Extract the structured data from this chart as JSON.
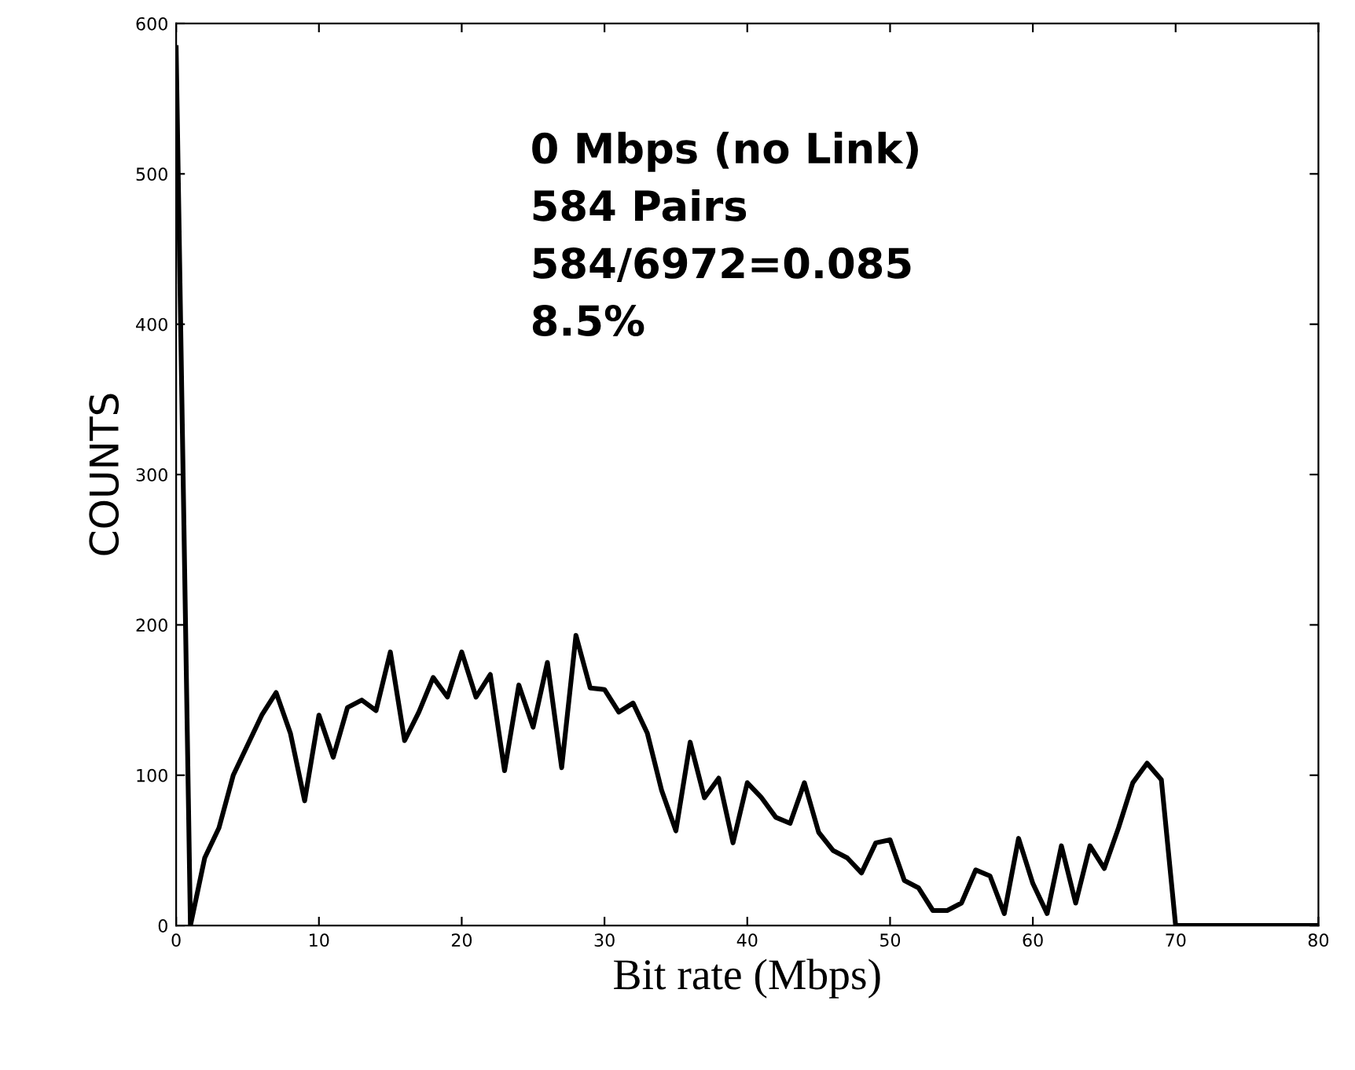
{
  "chart_data": {
    "type": "line",
    "xlabel": "Bit rate (Mbps)",
    "ylabel": "COUNTS",
    "annotations": [
      "0 Mbps (no Link)",
      "584 Pairs",
      "584/6972=0.085",
      "8.5%"
    ],
    "x": [
      0,
      1,
      2,
      3,
      4,
      5,
      6,
      7,
      8,
      9,
      10,
      11,
      12,
      13,
      14,
      15,
      16,
      17,
      18,
      19,
      20,
      21,
      22,
      23,
      24,
      25,
      26,
      27,
      28,
      29,
      30,
      31,
      32,
      33,
      34,
      35,
      36,
      37,
      38,
      39,
      40,
      41,
      42,
      43,
      44,
      45,
      46,
      47,
      48,
      49,
      50,
      51,
      52,
      53,
      54,
      55,
      56,
      57,
      58,
      59,
      60,
      61,
      62,
      63,
      64,
      65,
      66,
      67,
      68,
      69,
      70,
      71,
      72,
      73,
      74,
      75,
      76,
      77,
      78,
      79,
      80
    ],
    "series": [
      {
        "color": "#000000",
        "values": [
          584,
          0,
          45,
          65,
          100,
          120,
          140,
          155,
          128,
          83,
          140,
          112,
          145,
          150,
          143,
          182,
          123,
          142,
          165,
          152,
          182,
          152,
          167,
          103,
          160,
          132,
          175,
          105,
          193,
          158,
          157,
          142,
          148,
          128,
          90,
          63,
          122,
          85,
          98,
          55,
          95,
          85,
          72,
          68,
          95,
          62,
          50,
          45,
          35,
          55,
          57,
          30,
          25,
          10,
          10,
          15,
          37,
          33,
          8,
          58,
          28,
          8,
          53,
          15,
          53,
          38,
          65,
          95,
          108,
          97,
          0,
          0,
          0,
          0,
          0,
          0,
          0,
          0,
          0,
          0,
          0
        ]
      }
    ],
    "xlim": [
      0,
      80
    ],
    "ylim": [
      0,
      600
    ],
    "xticks": [
      0,
      10,
      20,
      30,
      40,
      50,
      60,
      70,
      80
    ],
    "yticks": [
      0,
      100,
      200,
      300,
      400,
      500,
      600
    ],
    "grid": false,
    "legend": false,
    "marker": "none",
    "line_style": "solid"
  }
}
